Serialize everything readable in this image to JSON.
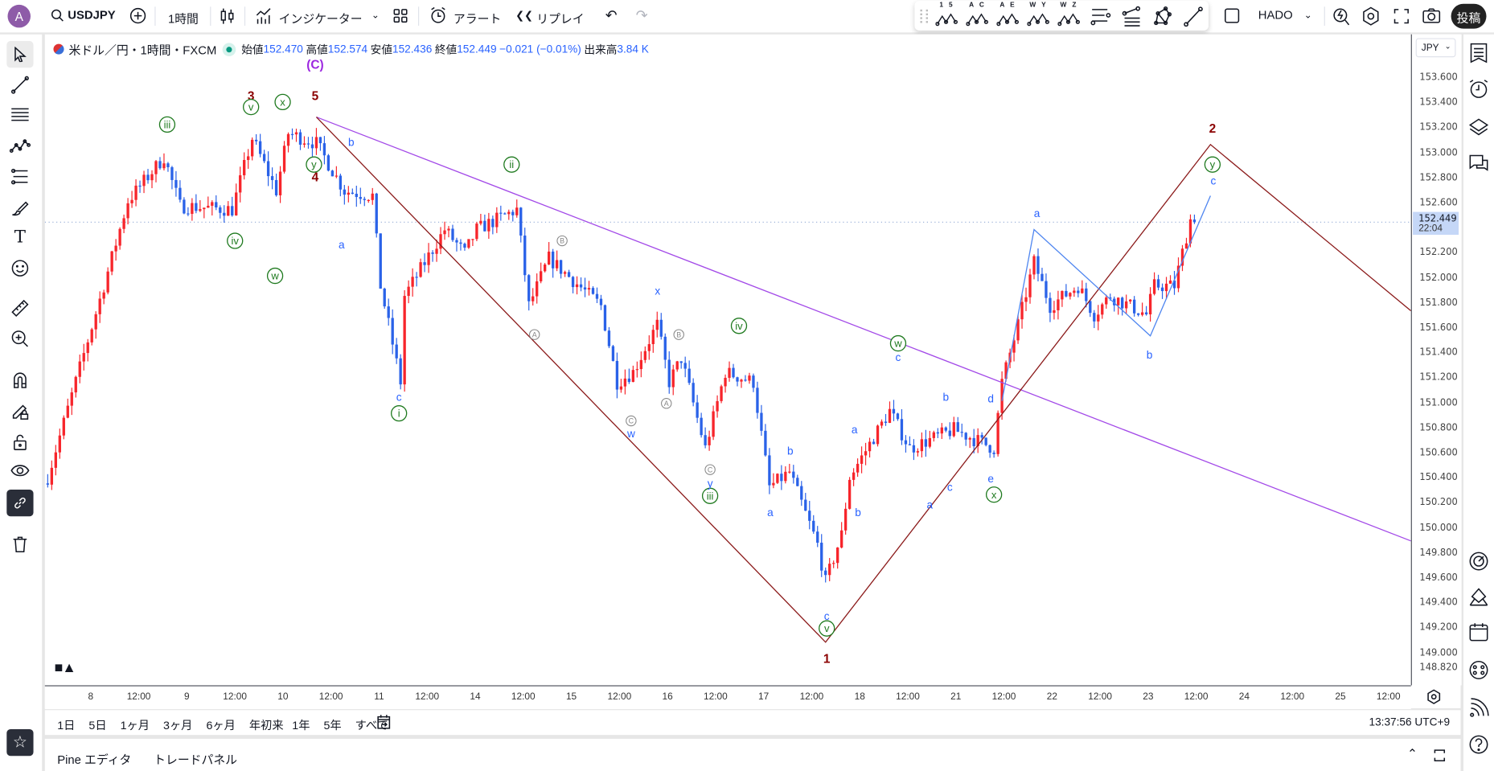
{
  "topbar": {
    "avatar_letter": "A",
    "symbol": "USDJPY",
    "interval": "1時間",
    "indicators_label": "インジケーター",
    "alert_label": "アラート",
    "replay_label": "リプレイ",
    "layout_name": "HADO",
    "publish_label": "投稿",
    "wave_tools": [
      {
        "name": "impulse-wave",
        "label": "1 5"
      },
      {
        "name": "correction-wave",
        "label": "A C"
      },
      {
        "name": "triangle-wave",
        "label": "A E"
      },
      {
        "name": "double-combo-wave",
        "label": "W Y"
      },
      {
        "name": "triple-combo-wave",
        "label": "W Z"
      }
    ]
  },
  "legend": {
    "title": "米ドル／円・1時間・FXCM",
    "open_label": "始値",
    "open": "152.470",
    "high_label": "高値",
    "high": "152.574",
    "low_label": "安値",
    "low": "152.436",
    "close_label": "終値",
    "close": "152.449",
    "change": "−0.021 (−0.01%)",
    "volume_label": "出来高",
    "volume": "3.84 K"
  },
  "price_axis": {
    "currency": "JPY",
    "ticks": [
      "153.600",
      "153.400",
      "153.200",
      "153.000",
      "152.800",
      "152.600",
      "152.200",
      "152.000",
      "151.800",
      "151.600",
      "151.400",
      "151.200",
      "151.000",
      "150.800",
      "150.600",
      "150.400",
      "150.200",
      "150.000",
      "149.800",
      "149.600",
      "149.400",
      "149.200",
      "149.000"
    ],
    "bottom_label": "148.820",
    "current_price": "152.449",
    "countdown": "22:04"
  },
  "time_axis": {
    "labels": [
      "8",
      "12:00",
      "9",
      "12:00",
      "10",
      "12:00",
      "11",
      "12:00",
      "14",
      "12:00",
      "15",
      "12:00",
      "16",
      "12:00",
      "17",
      "12:00",
      "18",
      "12:00",
      "21",
      "12:00",
      "22",
      "12:00",
      "23",
      "12:00",
      "24",
      "12:00",
      "25",
      "12:00"
    ]
  },
  "range_bar": {
    "ranges": [
      "1日",
      "5日",
      "1ヶ月",
      "3ヶ月",
      "6ヶ月",
      "年初来",
      "1年",
      "5年",
      "すべて"
    ],
    "clock": "13:37:56 UTC+9"
  },
  "bottom_panel": {
    "tabs": [
      "Pine エディタ",
      "トレードパネル"
    ]
  },
  "colors": {
    "up": "#f7252b",
    "down": "#2a62e8",
    "wave_primary": "#8b0000",
    "wave_minor": "#1f7a1f",
    "wave_minute": "#2962ff",
    "wave_sub": "#888888",
    "wave_c": "#9c27e0",
    "trendline": "#a34ae8",
    "channel": "#8b1a1a",
    "blue_line": "#4f86f0"
  },
  "chart_data": {
    "type": "candlestick",
    "symbol": "USDJPY",
    "interval": "1h",
    "ylim": [
      148.75,
      154.0
    ],
    "note": "waypoints are [bar_index, close] approximating the price path",
    "waypoints": [
      [
        0,
        150.41
      ],
      [
        14,
        151.94
      ],
      [
        20,
        152.62
      ],
      [
        29,
        152.97
      ],
      [
        33,
        152.58
      ],
      [
        46,
        152.55
      ],
      [
        51,
        153.12
      ],
      [
        57,
        152.7
      ],
      [
        60,
        153.16
      ],
      [
        67,
        153.08
      ],
      [
        74,
        152.7
      ],
      [
        81,
        152.66
      ],
      [
        83,
        151.94
      ],
      [
        88,
        151.17
      ],
      [
        89,
        151.86
      ],
      [
        99,
        152.39
      ],
      [
        104,
        152.2
      ],
      [
        107,
        152.39
      ],
      [
        117,
        152.55
      ],
      [
        120,
        151.78
      ],
      [
        125,
        152.16
      ],
      [
        138,
        151.78
      ],
      [
        142,
        151.17
      ],
      [
        146,
        151.25
      ],
      [
        152,
        151.63
      ],
      [
        155,
        151.17
      ],
      [
        158,
        151.36
      ],
      [
        164,
        150.64
      ],
      [
        169,
        151.25
      ],
      [
        176,
        151.17
      ],
      [
        180,
        150.33
      ],
      [
        185,
        150.45
      ],
      [
        192,
        149.87
      ],
      [
        194,
        149.57
      ],
      [
        198,
        149.95
      ],
      [
        200,
        150.41
      ],
      [
        210,
        150.94
      ],
      [
        215,
        150.64
      ],
      [
        226,
        150.79
      ],
      [
        236,
        150.64
      ],
      [
        238,
        151.17
      ],
      [
        242,
        151.63
      ],
      [
        246,
        152.13
      ],
      [
        250,
        151.78
      ],
      [
        257,
        151.94
      ],
      [
        261,
        151.71
      ],
      [
        265,
        151.86
      ],
      [
        274,
        151.71
      ],
      [
        276,
        151.94
      ],
      [
        281,
        151.94
      ],
      [
        285,
        152.47
      ],
      [
        286,
        152.449
      ]
    ],
    "drawings": [
      {
        "name": "trendline",
        "color_key": "trendline",
        "points": [
          [
            67,
            153.29
          ],
          [
            340,
            149.9
          ]
        ]
      },
      {
        "name": "wave-channel",
        "color_key": "channel",
        "points": [
          [
            67,
            153.29
          ],
          [
            194,
            149.09
          ],
          [
            290,
            153.07
          ],
          [
            340,
            151.74
          ]
        ]
      },
      {
        "name": "minor-zigzag",
        "color_key": "blue_line",
        "points": [
          [
            238,
            151.02
          ],
          [
            246,
            152.39
          ],
          [
            275,
            151.54
          ],
          [
            290,
            152.66
          ]
        ]
      }
    ],
    "wave_labels": [
      {
        "t": "(C)",
        "s": "c",
        "i": 66.7,
        "p": 153.71
      },
      {
        "t": "3",
        "s": "primary",
        "i": 50.7,
        "p": 153.46
      },
      {
        "t": "5",
        "s": "primary",
        "i": 66.7,
        "p": 153.46
      },
      {
        "t": "4",
        "s": "primary",
        "i": 66.7,
        "p": 152.81
      },
      {
        "t": "2",
        "s": "primary",
        "i": 290.5,
        "p": 153.2
      },
      {
        "t": "1",
        "s": "primary",
        "i": 194.3,
        "p": 148.96
      },
      {
        "t": "iii",
        "s": "minor",
        "i": 29.8,
        "p": 153.23
      },
      {
        "t": "v",
        "s": "minor",
        "i": 50.7,
        "p": 153.37
      },
      {
        "t": "x",
        "s": "minor",
        "i": 58.6,
        "p": 153.41
      },
      {
        "t": "y",
        "s": "minor",
        "i": 66.4,
        "p": 152.91
      },
      {
        "t": "iv",
        "s": "minor",
        "i": 46.7,
        "p": 152.3
      },
      {
        "t": "w",
        "s": "minor",
        "i": 56.7,
        "p": 152.02
      },
      {
        "t": "i",
        "s": "minor",
        "i": 87.6,
        "p": 150.92
      },
      {
        "t": "ii",
        "s": "minor",
        "i": 115.7,
        "p": 152.91
      },
      {
        "t": "iv",
        "s": "minor",
        "i": 172.4,
        "p": 151.62
      },
      {
        "t": "iii",
        "s": "minor",
        "i": 165.2,
        "p": 150.26
      },
      {
        "t": "v",
        "s": "minor",
        "i": 194.3,
        "p": 149.2
      },
      {
        "t": "w",
        "s": "minor",
        "i": 212.1,
        "p": 151.48
      },
      {
        "t": "x",
        "s": "minor",
        "i": 236,
        "p": 150.27
      },
      {
        "t": "y",
        "s": "minor",
        "i": 290.5,
        "p": 152.91
      },
      {
        "t": "b",
        "s": "minute",
        "i": 75.7,
        "p": 153.09
      },
      {
        "t": "a",
        "s": "minute",
        "i": 73.3,
        "p": 152.27
      },
      {
        "t": "c",
        "s": "minute",
        "i": 87.6,
        "p": 151.05
      },
      {
        "t": "x",
        "s": "minute",
        "i": 152.1,
        "p": 151.9
      },
      {
        "t": "w",
        "s": "minute",
        "i": 145.5,
        "p": 150.76
      },
      {
        "t": "y",
        "s": "minute",
        "i": 165.2,
        "p": 150.36
      },
      {
        "t": "b",
        "s": "minute",
        "i": 185.2,
        "p": 150.62
      },
      {
        "t": "a",
        "s": "minute",
        "i": 180.2,
        "p": 150.13
      },
      {
        "t": "c",
        "s": "minute",
        "i": 194.3,
        "p": 149.3
      },
      {
        "t": "a",
        "s": "minute",
        "i": 201.2,
        "p": 150.79
      },
      {
        "t": "b",
        "s": "minute",
        "i": 202.1,
        "p": 150.13
      },
      {
        "t": "c",
        "s": "minute",
        "i": 212.1,
        "p": 151.37
      },
      {
        "t": "b",
        "s": "minute",
        "i": 224,
        "p": 151.05
      },
      {
        "t": "a",
        "s": "minute",
        "i": 220,
        "p": 150.19
      },
      {
        "t": "c",
        "s": "minute",
        "i": 225,
        "p": 150.33
      },
      {
        "t": "d",
        "s": "minute",
        "i": 235.2,
        "p": 151.04
      },
      {
        "t": "e",
        "s": "minute",
        "i": 235.2,
        "p": 150.4
      },
      {
        "t": "a",
        "s": "minute",
        "i": 246.7,
        "p": 152.52
      },
      {
        "t": "b",
        "s": "minute",
        "i": 274.8,
        "p": 151.39
      },
      {
        "t": "c",
        "s": "minute",
        "i": 290.7,
        "p": 152.78
      },
      {
        "t": "B",
        "s": "sub",
        "i": 128.3,
        "p": 152.3
      },
      {
        "t": "A",
        "s": "sub",
        "i": 121.4,
        "p": 151.55
      },
      {
        "t": "B",
        "s": "sub",
        "i": 157.4,
        "p": 151.55
      },
      {
        "t": "A",
        "s": "sub",
        "i": 154.3,
        "p": 151.0
      },
      {
        "t": "C",
        "s": "sub",
        "i": 145.5,
        "p": 150.86
      },
      {
        "t": "C",
        "s": "sub",
        "i": 165.2,
        "p": 150.47
      }
    ]
  }
}
